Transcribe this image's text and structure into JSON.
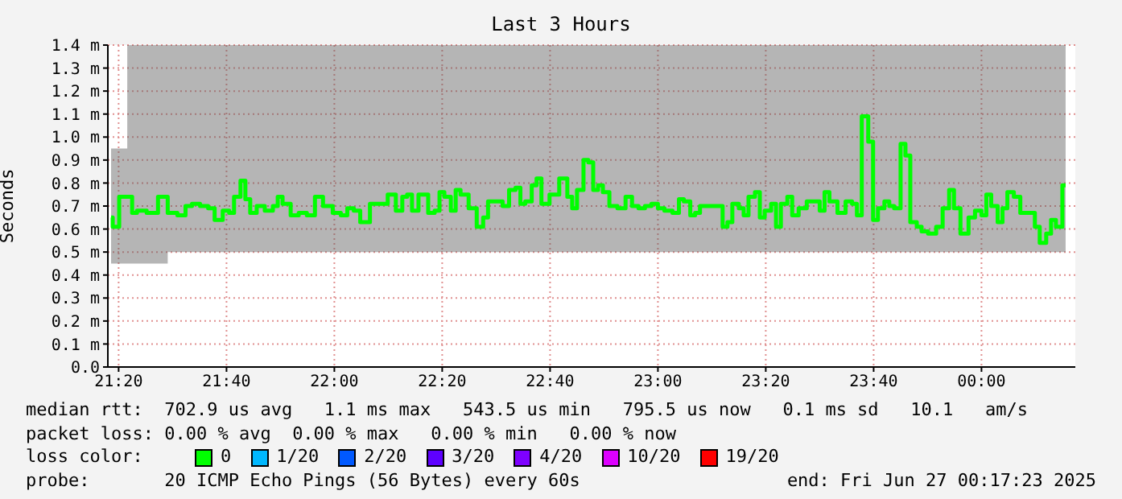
{
  "chart_data": {
    "type": "step",
    "title": "Last 3 Hours",
    "ylabel": "Seconds",
    "xlim": [
      21.3,
      24.29
    ],
    "xticks": [
      {
        "value": 21.3333,
        "label": "21:20"
      },
      {
        "value": 21.6667,
        "label": "21:40"
      },
      {
        "value": 22,
        "label": "22:00"
      },
      {
        "value": 22.3333,
        "label": "22:20"
      },
      {
        "value": 22.6667,
        "label": "22:40"
      },
      {
        "value": 23,
        "label": "23:00"
      },
      {
        "value": 23.3333,
        "label": "23:20"
      },
      {
        "value": 23.6667,
        "label": "23:40"
      },
      {
        "value": 24,
        "label": "00:00"
      }
    ],
    "ylim": [
      0,
      1.4
    ],
    "yticks": [
      {
        "value": 0,
        "label": "0.0"
      },
      {
        "value": 0.1,
        "label": "0.1 m"
      },
      {
        "value": 0.2,
        "label": "0.2 m"
      },
      {
        "value": 0.3,
        "label": "0.3 m"
      },
      {
        "value": 0.4,
        "label": "0.4 m"
      },
      {
        "value": 0.5,
        "label": "0.5 m"
      },
      {
        "value": 0.6,
        "label": "0.6 m"
      },
      {
        "value": 0.7,
        "label": "0.7 m"
      },
      {
        "value": 0.8,
        "label": "0.8 m"
      },
      {
        "value": 0.9,
        "label": "0.9 m"
      },
      {
        "value": 1.0,
        "label": "1.0 m"
      },
      {
        "value": 1.1,
        "label": "1.1 m"
      },
      {
        "value": 1.2,
        "label": "1.2 m"
      },
      {
        "value": 1.3,
        "label": "1.3 m"
      },
      {
        "value": 1.4,
        "label": "1.4 m"
      }
    ],
    "grid": true,
    "series": [
      {
        "color": "#00ff00",
        "x": [
          21.31,
          21.32,
          21.35,
          21.37,
          21.38,
          21.4,
          21.44,
          21.47,
          21.5,
          21.53,
          21.55,
          21.57,
          21.6,
          21.62,
          21.64,
          21.67,
          21.68,
          21.7,
          21.72,
          21.73,
          21.75,
          21.77,
          21.8,
          21.82,
          21.83,
          21.85,
          21.88,
          21.9,
          21.93,
          21.95,
          21.98,
          22.01,
          22.03,
          22.05,
          22.07,
          22.09,
          22.13,
          22.15,
          22.18,
          22.2,
          22.22,
          22.23,
          22.25,
          22.27,
          22.28,
          22.3,
          22.32,
          22.33,
          22.35,
          22.37,
          22.38,
          22.4,
          22.43,
          22.45,
          22.47,
          22.48,
          22.51,
          22.53,
          22.55,
          22.57,
          22.58,
          22.6,
          22.62,
          22.63,
          22.65,
          22.68,
          22.71,
          22.73,
          22.74,
          22.76,
          22.78,
          22.79,
          22.81,
          22.82,
          22.84,
          22.86,
          22.89,
          22.91,
          22.93,
          22.95,
          22.97,
          22.99,
          23.01,
          23.03,
          23.06,
          23.07,
          23.09,
          23.11,
          23.12,
          23.14,
          23.17,
          23.19,
          23.21,
          23.22,
          23.24,
          23.26,
          23.27,
          23.29,
          23.31,
          23.32,
          23.34,
          23.36,
          23.37,
          23.39,
          23.41,
          23.42,
          23.45,
          23.47,
          23.49,
          23.51,
          23.52,
          23.54,
          23.57,
          23.59,
          23.61,
          23.62,
          23.64,
          23.66,
          23.67,
          23.69,
          23.71,
          23.72,
          23.74,
          23.76,
          23.77,
          23.79,
          23.81,
          23.82,
          23.85,
          23.87,
          23.89,
          23.91,
          23.92,
          23.95,
          23.97,
          23.99,
          24.01,
          24.02,
          24.04,
          24.06,
          24.07,
          24.09,
          24.11,
          24.13,
          24.16,
          24.17,
          24.19,
          24.21,
          24.22,
          24.24,
          24.26
        ],
        "values": [
          0.65,
          0.61,
          0.74,
          0.74,
          0.67,
          0.68,
          0.67,
          0.74,
          0.67,
          0.66,
          0.7,
          0.71,
          0.7,
          0.69,
          0.64,
          0.68,
          0.67,
          0.74,
          0.81,
          0.73,
          0.67,
          0.7,
          0.68,
          0.7,
          0.74,
          0.71,
          0.66,
          0.67,
          0.66,
          0.74,
          0.7,
          0.67,
          0.66,
          0.69,
          0.68,
          0.63,
          0.71,
          0.71,
          0.75,
          0.68,
          0.74,
          0.75,
          0.68,
          0.75,
          0.75,
          0.67,
          0.68,
          0.76,
          0.74,
          0.68,
          0.77,
          0.75,
          0.69,
          0.61,
          0.65,
          0.72,
          0.72,
          0.7,
          0.77,
          0.78,
          0.71,
          0.72,
          0.79,
          0.82,
          0.71,
          0.75,
          0.82,
          0.74,
          0.69,
          0.77,
          0.9,
          0.89,
          0.77,
          0.79,
          0.76,
          0.7,
          0.69,
          0.74,
          0.7,
          0.69,
          0.7,
          0.71,
          0.69,
          0.68,
          0.67,
          0.73,
          0.72,
          0.66,
          0.67,
          0.7,
          0.7,
          0.7,
          0.61,
          0.63,
          0.71,
          0.69,
          0.66,
          0.74,
          0.76,
          0.65,
          0.68,
          0.71,
          0.61,
          0.71,
          0.74,
          0.66,
          0.69,
          0.72,
          0.72,
          0.68,
          0.76,
          0.72,
          0.67,
          0.72,
          0.71,
          0.66,
          1.09,
          0.98,
          0.64,
          0.69,
          0.72,
          0.7,
          0.69,
          0.97,
          0.92,
          0.63,
          0.61,
          0.59,
          0.58,
          0.61,
          0.69,
          0.77,
          0.69,
          0.58,
          0.65,
          0.68,
          0.66,
          0.75,
          0.7,
          0.63,
          0.69,
          0.76,
          0.74,
          0.67,
          0.67,
          0.61,
          0.54,
          0.58,
          0.64,
          0.61,
          0.79
        ],
        "lower": [
          0.45,
          0.45,
          0.45,
          0.45,
          0.45,
          0.45,
          0.45,
          0.45,
          0.5,
          0.5,
          0.5,
          0.5,
          0.5,
          0.5,
          0.5,
          0.5,
          0.5,
          0.5,
          0.5,
          0.5,
          0.5,
          0.5,
          0.5,
          0.5,
          0.5,
          0.5,
          0.5,
          0.5,
          0.5,
          0.5,
          0.5,
          0.5,
          0.5,
          0.5,
          0.5,
          0.5,
          0.5,
          0.5,
          0.5,
          0.5,
          0.5,
          0.5,
          0.5,
          0.5,
          0.5,
          0.5,
          0.5,
          0.5,
          0.5,
          0.5,
          0.5,
          0.5,
          0.5,
          0.5,
          0.5,
          0.5,
          0.5,
          0.5,
          0.5,
          0.5,
          0.5,
          0.5,
          0.5,
          0.5,
          0.5,
          0.5,
          0.5,
          0.5,
          0.5,
          0.5,
          0.5,
          0.5,
          0.5,
          0.5,
          0.5,
          0.5,
          0.5,
          0.5,
          0.5,
          0.5,
          0.5,
          0.5,
          0.5,
          0.5,
          0.5,
          0.5,
          0.5,
          0.5,
          0.5,
          0.5,
          0.5,
          0.5,
          0.5,
          0.5,
          0.5,
          0.5,
          0.5,
          0.5,
          0.5,
          0.5,
          0.5,
          0.5,
          0.5,
          0.5,
          0.5,
          0.5,
          0.5,
          0.5,
          0.5,
          0.5,
          0.5,
          0.5,
          0.5,
          0.5,
          0.5,
          0.5,
          0.5,
          0.5,
          0.5,
          0.5,
          0.5,
          0.5,
          0.5,
          0.5,
          0.5,
          0.5,
          0.5,
          0.5,
          0.5,
          0.5,
          0.5,
          0.5,
          0.5,
          0.5,
          0.5,
          0.5,
          0.5,
          0.5,
          0.5,
          0.5,
          0.5,
          0.5,
          0.5,
          0.5,
          0.5,
          0.5,
          0.5,
          0.5,
          0.5,
          0.5,
          0.5
        ],
        "upper": [
          0.95,
          0.95,
          0.95,
          1.4,
          1.4,
          1.4,
          1.4,
          1.4,
          1.4,
          1.4,
          1.4,
          1.4,
          1.4,
          1.4,
          1.4,
          1.4,
          1.4,
          1.4,
          1.4,
          1.4,
          1.4,
          1.4,
          1.4,
          1.4,
          1.4,
          1.4,
          1.4,
          1.4,
          1.4,
          1.4,
          1.4,
          1.4,
          1.4,
          1.4,
          1.4,
          1.4,
          1.4,
          1.4,
          1.4,
          1.4,
          1.4,
          1.4,
          1.4,
          1.4,
          1.4,
          1.4,
          1.4,
          1.4,
          1.4,
          1.4,
          1.4,
          1.4,
          1.4,
          1.4,
          1.4,
          1.4,
          1.4,
          1.4,
          1.4,
          1.4,
          1.4,
          1.4,
          1.4,
          1.4,
          1.4,
          1.4,
          1.4,
          1.4,
          1.4,
          1.4,
          1.4,
          1.4,
          1.4,
          1.4,
          1.4,
          1.4,
          1.4,
          1.4,
          1.4,
          1.4,
          1.4,
          1.4,
          1.4,
          1.4,
          1.4,
          1.4,
          1.4,
          1.4,
          1.4,
          1.4,
          1.4,
          1.4,
          1.4,
          1.4,
          1.4,
          1.4,
          1.4,
          1.4,
          1.4,
          1.4,
          1.4,
          1.4,
          1.4,
          1.4,
          1.4,
          1.4,
          1.4,
          1.4,
          1.4,
          1.4,
          1.4,
          1.4,
          1.4,
          1.4,
          1.4,
          1.4,
          1.4,
          1.4,
          1.4,
          1.4,
          1.4,
          1.4,
          1.4,
          1.4,
          1.4,
          1.4,
          1.4,
          1.4,
          1.4,
          1.4,
          1.4,
          1.4,
          1.4,
          1.4,
          1.4,
          1.4,
          1.4,
          1.4,
          1.4,
          1.4,
          1.4,
          1.4,
          1.4,
          1.4,
          1.4,
          1.4,
          1.4,
          1.4,
          1.4,
          1.4,
          1.4
        ]
      }
    ],
    "annotations": [
      "median rtt:  702.9 us avg   1.1 ms max   543.5 us min   795.5 us now   0.1 ms sd   10.1   am/s",
      "packet loss: 0.00 % avg  0.00 % max   0.00 % min   0.00 % now",
      "loss color:",
      "0",
      "1/20",
      "2/20",
      "3/20",
      "4/20",
      "10/20",
      "19/20",
      "probe:       20 ICMP Echo Pings (56 Bytes) every 60s",
      "end: Fri Jun 27 00:17:23 2025"
    ]
  }
}
